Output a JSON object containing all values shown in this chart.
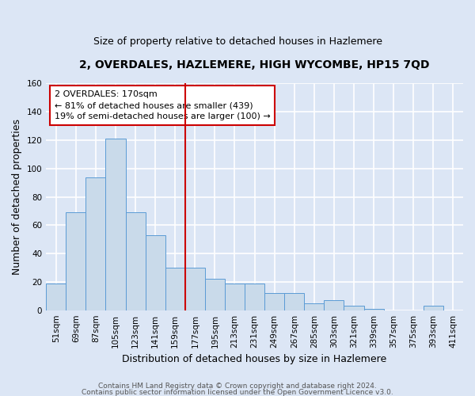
{
  "title": "2, OVERDALES, HAZLEMERE, HIGH WYCOMBE, HP15 7QD",
  "subtitle": "Size of property relative to detached houses in Hazlemere",
  "xlabel": "Distribution of detached houses by size in Hazlemere",
  "ylabel": "Number of detached properties",
  "bar_labels": [
    "51sqm",
    "69sqm",
    "87sqm",
    "105sqm",
    "123sqm",
    "141sqm",
    "159sqm",
    "177sqm",
    "195sqm",
    "213sqm",
    "231sqm",
    "249sqm",
    "267sqm",
    "285sqm",
    "303sqm",
    "321sqm",
    "339sqm",
    "357sqm",
    "375sqm",
    "393sqm",
    "411sqm"
  ],
  "bar_values": [
    19,
    69,
    94,
    121,
    69,
    53,
    30,
    30,
    22,
    19,
    19,
    12,
    12,
    5,
    7,
    3,
    1,
    0,
    0,
    3,
    0
  ],
  "bar_color": "#c9daea",
  "bar_edge_color": "#5b9bd5",
  "vline_x": 7.0,
  "vline_color": "#cc0000",
  "annotation_title": "2 OVERDALES: 170sqm",
  "annotation_line1": "← 81% of detached houses are smaller (439)",
  "annotation_line2": "19% of semi-detached houses are larger (100) →",
  "annotation_box_color": "#cc0000",
  "ylim": [
    0,
    160
  ],
  "yticks": [
    0,
    20,
    40,
    60,
    80,
    100,
    120,
    140,
    160
  ],
  "footer1": "Contains HM Land Registry data © Crown copyright and database right 2024.",
  "footer2": "Contains public sector information licensed under the Open Government Licence v3.0.",
  "fig_bg_color": "#dce6f5",
  "plot_bg_color": "#dce6f5",
  "grid_color": "#ffffff",
  "title_fontsize": 10,
  "subtitle_fontsize": 9,
  "axis_label_fontsize": 9,
  "tick_fontsize": 7.5,
  "footer_fontsize": 6.5,
  "annotation_fontsize": 8
}
